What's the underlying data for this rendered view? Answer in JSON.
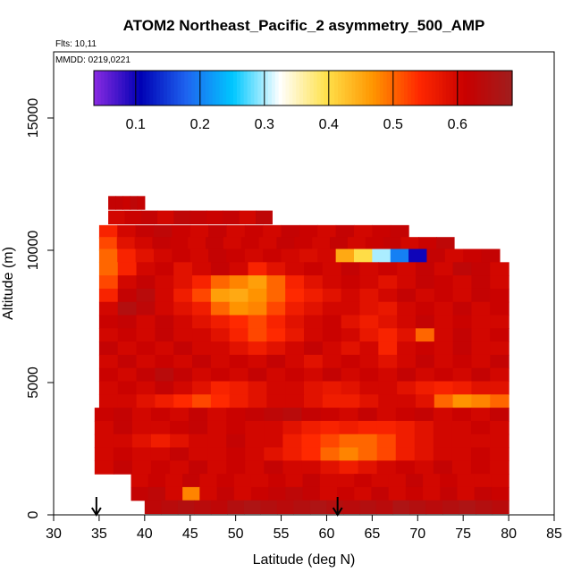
{
  "chart_data": {
    "type": "heatmap",
    "title": "ATOM2 Northeast_Pacific_2 asymmetry_500_AMP",
    "flights_note": "Flts: 10,11",
    "date_note": "MMDD: 0219,0221",
    "xlabel": "Latitude (deg N)",
    "ylabel": "Altitude (m)",
    "xlim": [
      30,
      85
    ],
    "ylim": [
      0,
      17500
    ],
    "x_ticks": [
      30,
      35,
      40,
      45,
      50,
      55,
      60,
      65,
      70,
      75,
      80,
      85
    ],
    "y_ticks": [
      0,
      5000,
      10000,
      15000
    ],
    "colorbar": {
      "range": [
        0.035,
        0.685
      ],
      "ticks": [
        0.1,
        0.2,
        0.3,
        0.4,
        0.5,
        0.6
      ],
      "colors": [
        "#8a2be2",
        "#0000b4",
        "#1e64f0",
        "#00c8ff",
        "#ffffff",
        "#ffe14b",
        "#ff9600",
        "#ff2800",
        "#c80000",
        "#a01e1e"
      ]
    },
    "arrows_latitude": [
      34.7,
      61.2
    ],
    "rows": [
      {
        "alt": 11800,
        "lat_start": 36,
        "lat_end": 40,
        "values": [
          0.62,
          0.62,
          0.61,
          0.63,
          0.62
        ]
      },
      {
        "alt": 11250,
        "lat_start": 36,
        "lat_end": 54,
        "values": [
          0.6,
          0.61,
          0.62,
          0.6,
          0.63,
          0.62,
          0.61,
          0.62,
          0.6,
          0.63
        ]
      },
      {
        "alt": 10700,
        "lat_start": 35,
        "lat_end": 69,
        "values": [
          0.55,
          0.6,
          0.62,
          0.63,
          0.61,
          0.6,
          0.62,
          0.6,
          0.61,
          0.6,
          0.62,
          0.61,
          0.6,
          0.62,
          0.6,
          0.61,
          0.62
        ]
      },
      {
        "alt": 10250,
        "lat_start": 35,
        "lat_end": 74,
        "values": [
          0.52,
          0.58,
          0.6,
          0.62,
          0.61,
          0.6,
          0.62,
          0.6,
          0.61,
          0.6,
          0.62,
          0.61,
          0.6,
          0.62,
          0.6,
          0.61,
          0.62,
          0.6,
          0.61,
          0.63
        ]
      },
      {
        "alt": 9800,
        "lat_start": 35,
        "lat_end": 79,
        "values": [
          0.5,
          0.55,
          0.58,
          0.6,
          0.61,
          0.6,
          0.62,
          0.61,
          0.6,
          0.61,
          0.6,
          0.59,
          0.6,
          0.45,
          0.4,
          0.3,
          0.2,
          0.1,
          0.62,
          0.6,
          0.61,
          0.62
        ]
      },
      {
        "alt": 9300,
        "lat_start": 35,
        "lat_end": 80,
        "values": [
          0.5,
          0.55,
          0.6,
          0.61,
          0.58,
          0.6,
          0.62,
          0.6,
          0.55,
          0.58,
          0.6,
          0.61,
          0.6,
          0.62,
          0.6,
          0.61,
          0.6,
          0.62,
          0.6,
          0.63,
          0.62,
          0.6
        ]
      },
      {
        "alt": 8800,
        "lat_start": 35,
        "lat_end": 80,
        "values": [
          0.52,
          0.6,
          0.62,
          0.6,
          0.58,
          0.55,
          0.5,
          0.48,
          0.46,
          0.5,
          0.55,
          0.58,
          0.6,
          0.61,
          0.6,
          0.58,
          0.6,
          0.62,
          0.61,
          0.6,
          0.62,
          0.6
        ]
      },
      {
        "alt": 8300,
        "lat_start": 35,
        "lat_end": 80,
        "values": [
          0.55,
          0.62,
          0.64,
          0.6,
          0.56,
          0.52,
          0.46,
          0.45,
          0.47,
          0.5,
          0.54,
          0.56,
          0.58,
          0.6,
          0.58,
          0.6,
          0.62,
          0.6,
          0.61,
          0.6,
          0.62,
          0.61
        ]
      },
      {
        "alt": 7800,
        "lat_start": 35,
        "lat_end": 80,
        "values": [
          0.6,
          0.65,
          0.63,
          0.6,
          0.58,
          0.56,
          0.5,
          0.47,
          0.48,
          0.52,
          0.56,
          0.58,
          0.6,
          0.6,
          0.58,
          0.57,
          0.6,
          0.61,
          0.6,
          0.62,
          0.6,
          0.61
        ]
      },
      {
        "alt": 7300,
        "lat_start": 35,
        "lat_end": 80,
        "values": [
          0.61,
          0.62,
          0.6,
          0.62,
          0.6,
          0.58,
          0.56,
          0.54,
          0.52,
          0.55,
          0.58,
          0.6,
          0.61,
          0.58,
          0.56,
          0.58,
          0.6,
          0.62,
          0.6,
          0.61,
          0.6,
          0.6
        ]
      },
      {
        "alt": 6800,
        "lat_start": 35,
        "lat_end": 80,
        "values": [
          0.6,
          0.61,
          0.6,
          0.62,
          0.6,
          0.6,
          0.58,
          0.55,
          0.52,
          0.54,
          0.57,
          0.6,
          0.61,
          0.6,
          0.57,
          0.55,
          0.58,
          0.5,
          0.6,
          0.62,
          0.6,
          0.61
        ]
      },
      {
        "alt": 6300,
        "lat_start": 35,
        "lat_end": 80,
        "values": [
          0.62,
          0.6,
          0.61,
          0.6,
          0.62,
          0.6,
          0.6,
          0.58,
          0.56,
          0.58,
          0.6,
          0.62,
          0.6,
          0.58,
          0.6,
          0.55,
          0.6,
          0.61,
          0.6,
          0.62,
          0.6,
          0.6
        ]
      },
      {
        "alt": 5800,
        "lat_start": 35,
        "lat_end": 80,
        "values": [
          0.6,
          0.62,
          0.6,
          0.61,
          0.6,
          0.62,
          0.6,
          0.61,
          0.6,
          0.62,
          0.6,
          0.58,
          0.6,
          0.61,
          0.6,
          0.58,
          0.6,
          0.62,
          0.6,
          0.61,
          0.6,
          0.62
        ]
      },
      {
        "alt": 5300,
        "lat_start": 35,
        "lat_end": 80,
        "values": [
          0.61,
          0.6,
          0.62,
          0.64,
          0.62,
          0.6,
          0.61,
          0.6,
          0.62,
          0.6,
          0.61,
          0.6,
          0.62,
          0.6,
          0.61,
          0.6,
          0.62,
          0.6,
          0.61,
          0.6,
          0.62,
          0.6
        ]
      },
      {
        "alt": 4800,
        "lat_start": 35,
        "lat_end": 80,
        "values": [
          0.6,
          0.61,
          0.6,
          0.62,
          0.6,
          0.58,
          0.55,
          0.56,
          0.58,
          0.6,
          0.6,
          0.58,
          0.57,
          0.58,
          0.6,
          0.6,
          0.58,
          0.56,
          0.55,
          0.56,
          0.58,
          0.58
        ]
      },
      {
        "alt": 4300,
        "lat_start": 35,
        "lat_end": 80,
        "values": [
          0.6,
          0.6,
          0.58,
          0.56,
          0.54,
          0.52,
          0.54,
          0.56,
          0.58,
          0.6,
          0.6,
          0.58,
          0.56,
          0.56,
          0.58,
          0.6,
          0.6,
          0.58,
          0.5,
          0.47,
          0.48,
          0.5
        ]
      },
      {
        "alt": 3800,
        "lat_start": 34.5,
        "lat_end": 80,
        "values": [
          0.61,
          0.62,
          0.6,
          0.61,
          0.6,
          0.62,
          0.6,
          0.61,
          0.62,
          0.63,
          0.64,
          0.62,
          0.61,
          0.6,
          0.62,
          0.6,
          0.61,
          0.62,
          0.6,
          0.61,
          0.6,
          0.62
        ]
      },
      {
        "alt": 3300,
        "lat_start": 34.5,
        "lat_end": 80,
        "values": [
          0.6,
          0.62,
          0.6,
          0.6,
          0.61,
          0.62,
          0.6,
          0.61,
          0.6,
          0.6,
          0.58,
          0.56,
          0.55,
          0.56,
          0.55,
          0.55,
          0.56,
          0.58,
          0.6,
          0.6,
          0.61,
          0.6
        ]
      },
      {
        "alt": 2800,
        "lat_start": 34.5,
        "lat_end": 80,
        "values": [
          0.6,
          0.6,
          0.58,
          0.56,
          0.58,
          0.6,
          0.6,
          0.62,
          0.6,
          0.6,
          0.56,
          0.54,
          0.52,
          0.5,
          0.5,
          0.52,
          0.56,
          0.58,
          0.6,
          0.6,
          0.6,
          0.6
        ]
      },
      {
        "alt": 2300,
        "lat_start": 34.5,
        "lat_end": 80,
        "values": [
          0.6,
          0.61,
          0.6,
          0.6,
          0.62,
          0.6,
          0.6,
          0.61,
          0.6,
          0.58,
          0.56,
          0.54,
          0.5,
          0.48,
          0.5,
          0.52,
          0.56,
          0.58,
          0.6,
          0.6,
          0.61,
          0.6
        ]
      },
      {
        "alt": 1800,
        "lat_start": 34.5,
        "lat_end": 80,
        "values": [
          0.6,
          0.62,
          0.6,
          0.61,
          0.6,
          0.62,
          0.6,
          0.61,
          0.6,
          0.62,
          0.6,
          0.6,
          0.58,
          0.56,
          0.58,
          0.6,
          0.61,
          0.6,
          0.62,
          0.6,
          0.61,
          0.6
        ]
      },
      {
        "alt": 1300,
        "lat_start": 38.5,
        "lat_end": 80,
        "values": [
          0.6,
          0.61,
          0.6,
          0.62,
          0.6,
          0.61,
          0.6,
          0.6,
          0.61,
          0.6,
          0.62,
          0.6,
          0.6,
          0.61,
          0.6,
          0.6,
          0.62,
          0.6,
          0.61,
          0.6,
          0.6,
          0.6
        ]
      },
      {
        "alt": 800,
        "lat_start": 38.5,
        "lat_end": 80,
        "values": [
          0.62,
          0.63,
          0.6,
          0.48,
          0.6,
          0.62,
          0.6,
          0.61,
          0.62,
          0.63,
          0.62,
          0.6,
          0.61,
          0.6,
          0.62,
          0.6,
          0.61,
          0.6,
          0.62,
          0.6,
          0.62,
          0.61
        ]
      },
      {
        "alt": 300,
        "lat_start": 40,
        "lat_end": 80,
        "values": [
          0.63,
          0.64,
          0.65,
          0.64,
          0.63,
          0.65,
          0.66,
          0.65,
          0.64,
          0.65,
          0.66,
          0.65,
          0.64,
          0.65,
          0.64,
          0.66,
          0.65,
          0.64,
          0.65,
          0.66,
          0.65,
          0.64
        ]
      }
    ]
  }
}
